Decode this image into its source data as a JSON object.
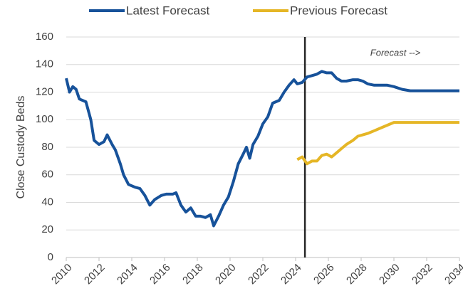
{
  "chart_data": {
    "type": "line",
    "ylabel": "Close Custody Beds",
    "annotation": "Forecast -->",
    "forecast_start": 2024.57,
    "x": [
      2010.0,
      2010.2,
      2010.4,
      2010.6,
      2010.8,
      2011.2,
      2011.5,
      2011.7,
      2012.0,
      2012.3,
      2012.5,
      2012.8,
      2013.0,
      2013.3,
      2013.5,
      2013.8,
      2014.2,
      2014.5,
      2014.8,
      2015.1,
      2015.4,
      2015.8,
      2016.1,
      2016.5,
      2016.7,
      2017.0,
      2017.3,
      2017.6,
      2017.9,
      2018.2,
      2018.5,
      2018.8,
      2019.0,
      2019.3,
      2019.6,
      2019.9,
      2020.2,
      2020.5,
      2020.8,
      2021.0,
      2021.2,
      2021.4,
      2021.7,
      2022.0,
      2022.3,
      2022.6,
      2023.0,
      2023.3,
      2023.6,
      2023.9,
      2024.1,
      2024.4,
      2024.7,
      2025.0,
      2025.3,
      2025.6,
      2025.9,
      2026.2,
      2026.5,
      2026.8,
      2027.1,
      2027.5,
      2027.8,
      2028.1,
      2028.4,
      2028.8,
      2029.2,
      2029.6,
      2030.0,
      2030.5,
      2031,
      2032,
      2033,
      2034
    ],
    "series": [
      {
        "name": "Latest Forecast",
        "color": "#17529a",
        "values": [
          130,
          120,
          124,
          122,
          115,
          113,
          100,
          85,
          82,
          84,
          89,
          82,
          78,
          68,
          60,
          53,
          51,
          50,
          45,
          38,
          42,
          45,
          46,
          46,
          47,
          38,
          33,
          36,
          30,
          30,
          29,
          31,
          23,
          30,
          38,
          44,
          55,
          68,
          75,
          80,
          72,
          82,
          88,
          97,
          102,
          112,
          114,
          120,
          125,
          129,
          126,
          127,
          131,
          132,
          133,
          135,
          134,
          134,
          130,
          128,
          128,
          129,
          129,
          128,
          126,
          125,
          125,
          125,
          124,
          122,
          121,
          121,
          121,
          121
        ]
      },
      {
        "name": "Previous Forecast",
        "color": "#e5b626",
        "values": [
          null,
          null,
          null,
          null,
          null,
          null,
          null,
          null,
          null,
          null,
          null,
          null,
          null,
          null,
          null,
          null,
          null,
          null,
          null,
          null,
          null,
          null,
          null,
          null,
          null,
          null,
          null,
          null,
          null,
          null,
          null,
          null,
          null,
          null,
          null,
          null,
          null,
          null,
          null,
          null,
          null,
          null,
          null,
          null,
          null,
          null,
          null,
          null,
          null,
          null,
          71,
          73,
          68,
          70,
          70,
          74,
          75,
          73,
          76,
          79,
          82,
          85,
          88,
          89,
          90,
          92,
          94,
          96,
          98,
          98,
          98,
          98,
          98,
          98
        ]
      }
    ],
    "xlim": [
      2010,
      2034
    ],
    "xticks": [
      2010,
      2012,
      2014,
      2016,
      2018,
      2020,
      2022,
      2024,
      2026,
      2028,
      2030,
      2032,
      2034
    ],
    "ylim": [
      0,
      160
    ],
    "yticks": [
      0,
      20,
      40,
      60,
      80,
      100,
      120,
      140,
      160
    ],
    "grid": true
  }
}
